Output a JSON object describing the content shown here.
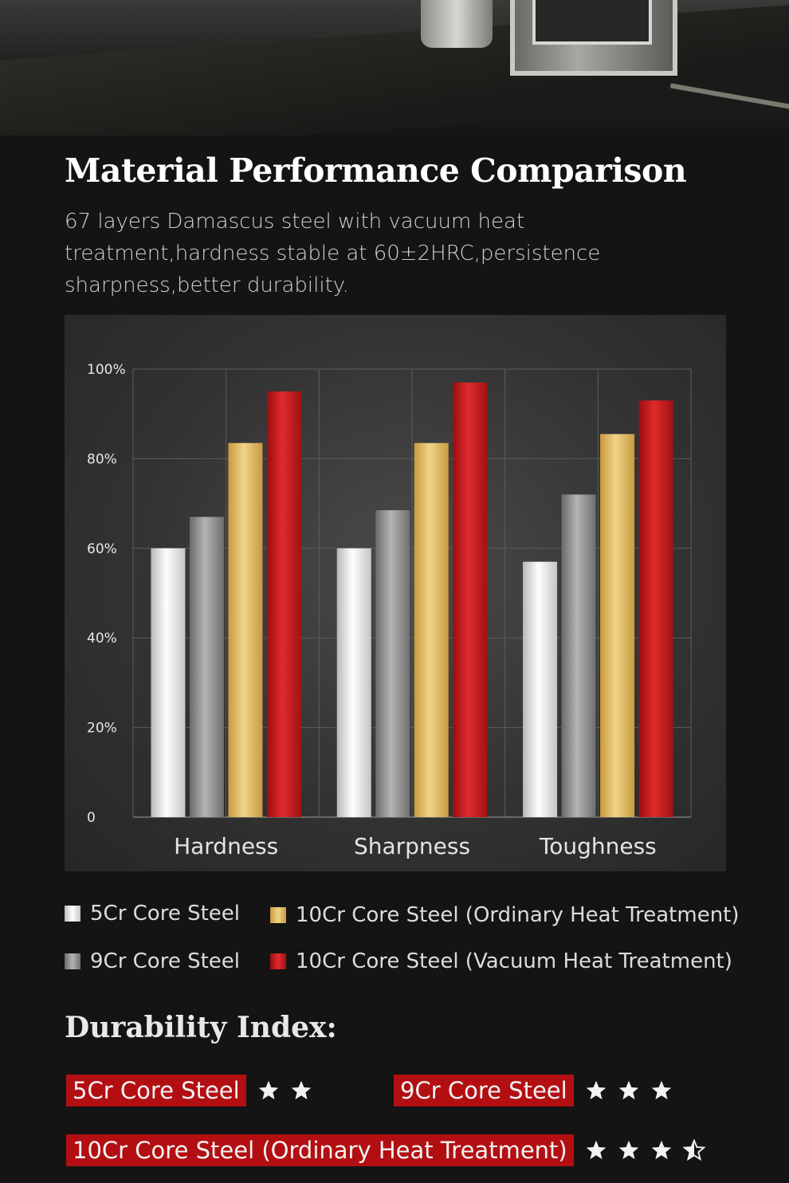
{
  "header": {
    "title": "Material Performance Comparison",
    "subtitle": "67 layers Damascus steel with vacuum heat treatment,hardness stable at 60±2HRC,persistence sharpness,better durability."
  },
  "chart_data": {
    "type": "bar",
    "title": "",
    "xlabel": "",
    "ylabel": "",
    "ylim": [
      0,
      100
    ],
    "y_ticks": [
      "0",
      "20%",
      "40%",
      "60%",
      "80%",
      "100%"
    ],
    "y_tick_values": [
      0,
      20,
      40,
      60,
      80,
      100
    ],
    "categories": [
      "Hardness",
      "Sharpness",
      "Toughness"
    ],
    "grid": true,
    "series": [
      {
        "name": "5Cr Core Steel",
        "values": [
          60,
          60,
          57
        ],
        "color": "#ececec"
      },
      {
        "name": "9Cr Core Steel",
        "values": [
          67,
          68.5,
          72
        ],
        "color": "#9a9a9a"
      },
      {
        "name": "10Cr Core Steel (Ordinary Heat Treatment)",
        "values": [
          83.5,
          83.5,
          85.5
        ],
        "color": "#e0bd66"
      },
      {
        "name": "10Cr Core Steel (Vacuum Heat Treatment)",
        "values": [
          95,
          97,
          93
        ],
        "color": "#c81c1f"
      }
    ]
  },
  "legend": {
    "items": [
      {
        "label": "5Cr Core Steel",
        "color": "#ececec"
      },
      {
        "label": "9Cr Core Steel",
        "color": "#9a9a9a"
      },
      {
        "label": "10Cr Core Steel (Ordinary Heat Treatment)",
        "color": "#e0bd66"
      },
      {
        "label": "10Cr Core Steel (Vacuum Heat Treatment)",
        "color": "#c81c1f"
      }
    ]
  },
  "durability": {
    "title": "Durability  Index:",
    "label_color": "#b30f12",
    "items": [
      {
        "label": "5Cr  Core Steel",
        "stars": 2
      },
      {
        "label": "9Cr Core Steel",
        "stars": 3
      },
      {
        "label": "10Cr  Core Steel (Ordinary Heat Treatment)",
        "stars": 3.5
      }
    ]
  }
}
